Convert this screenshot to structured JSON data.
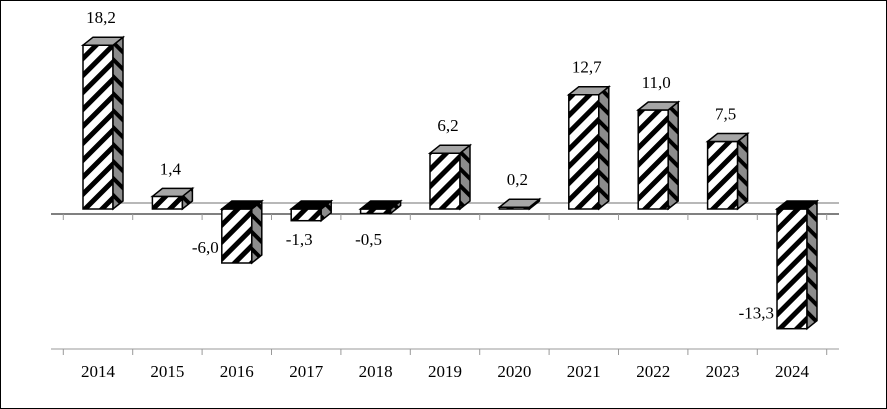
{
  "chart_data": {
    "type": "bar",
    "style": "3d-column-hatched",
    "title": "",
    "xlabel": "",
    "ylabel": "",
    "categories": [
      "2014",
      "2015",
      "2016",
      "2017",
      "2018",
      "2019",
      "2020",
      "2021",
      "2022",
      "2023",
      "2024"
    ],
    "values": [
      18.2,
      1.4,
      -6.0,
      -1.3,
      -0.5,
      6.2,
      0.2,
      12.7,
      11.0,
      7.5,
      -13.3
    ],
    "data_labels": [
      "18,2",
      "1,4",
      "-6,0",
      "-1,3",
      "-0,5",
      "6,2",
      "0,2",
      "12,7",
      "11,0",
      "7,5",
      "-13,3"
    ],
    "ylim": [
      -15,
      20
    ],
    "grid": false,
    "legend": "none",
    "colors": {
      "front": "#ffffff",
      "hatch": "#000000",
      "side": "#8c8c8c",
      "top_positive": "#a6a6a6",
      "top_negative": "#000000",
      "back_axis": "#a0a0a0"
    }
  }
}
